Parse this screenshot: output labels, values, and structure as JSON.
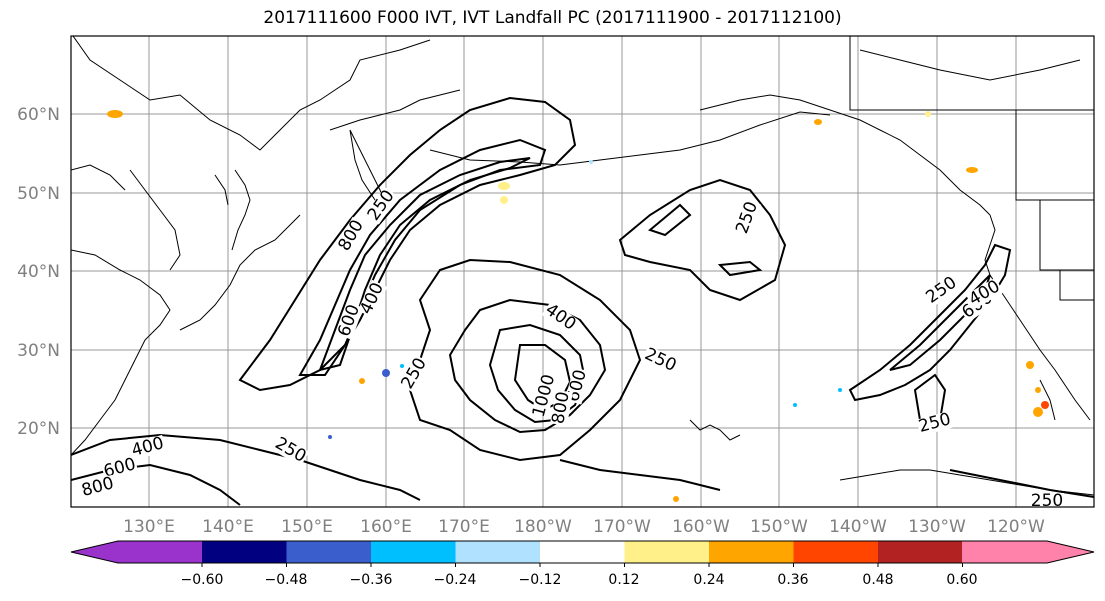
{
  "title": "2017111600 F000 IVT, IVT Landfall PC (2017111900 - 2017112100)",
  "lat_labels": [
    "60°N",
    "50°N",
    "40°N",
    "30°N",
    "20°N"
  ],
  "lon_labels": [
    "130°E",
    "140°E",
    "150°E",
    "160°E",
    "170°E",
    "180°W",
    "170°W",
    "160°W",
    "150°W",
    "140°W",
    "130°W",
    "120°W"
  ],
  "colorbar": {
    "colors": [
      "#9933cc",
      "#000080",
      "#3a5fcd",
      "#00bfff",
      "#b0e2ff",
      "#ffffff",
      "#fff08a",
      "#ffa500",
      "#ff4500",
      "#b22222",
      "#ff82ab"
    ],
    "tick_labels": [
      "−0.60",
      "−0.48",
      "−0.36",
      "−0.24",
      "−0.12",
      "0.12",
      "0.24",
      "0.36",
      "0.48",
      "0.60"
    ]
  },
  "contour_labels": [
    "250",
    "400",
    "600",
    "800",
    "1000",
    "250",
    "400",
    "600",
    "800",
    "250",
    "250",
    "600",
    "400",
    "250",
    "400",
    "600",
    "800",
    "250",
    "250",
    "250"
  ]
}
